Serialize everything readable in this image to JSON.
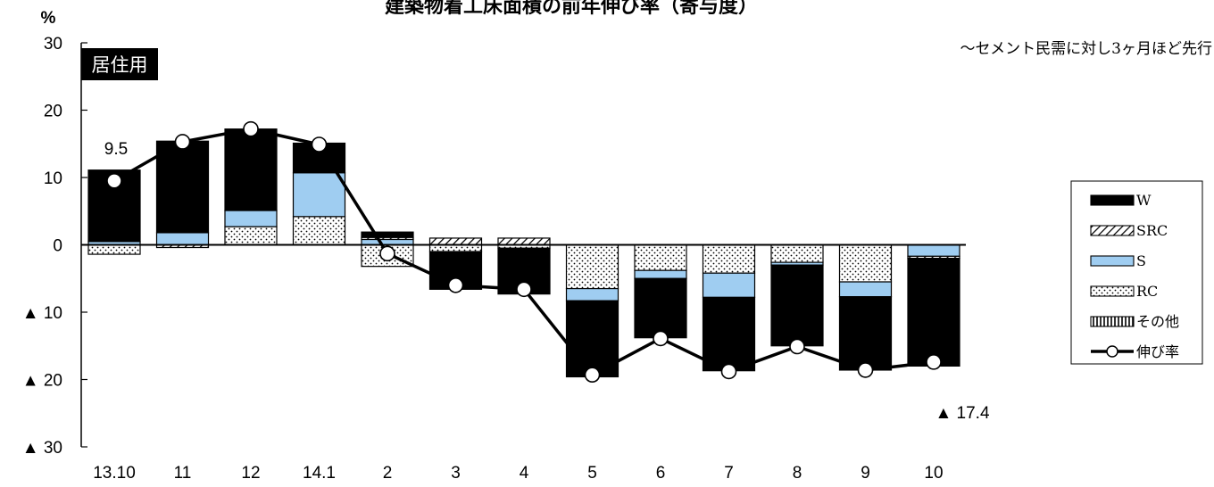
{
  "chart_data": {
    "type": "bar",
    "subtype": "stacked-contribution-with-line",
    "title": "建築物着工床面積の前年伸び率（寄与度）",
    "subtitle": "～セメント民需に対し3ヶ月ほど先行",
    "panel_label": "居住用",
    "y_unit": "%",
    "ylim": [
      -30,
      30
    ],
    "y_ticks": [
      {
        "value": 30,
        "label": "30"
      },
      {
        "value": 20,
        "label": "20"
      },
      {
        "value": 10,
        "label": "10"
      },
      {
        "value": 0,
        "label": "0"
      },
      {
        "value": -10,
        "label": "▲ 10"
      },
      {
        "value": -20,
        "label": "▲ 20"
      },
      {
        "value": -30,
        "label": "▲ 30"
      }
    ],
    "categories": [
      "13.10",
      "11",
      "12",
      "14.1",
      "2",
      "3",
      "4",
      "5",
      "6",
      "7",
      "8",
      "9",
      "10"
    ],
    "series": [
      {
        "name": "その他",
        "key": "other",
        "pattern": "vstripe",
        "values": [
          0,
          0,
          0,
          0,
          0,
          0,
          0,
          0,
          0,
          0,
          0,
          0,
          0
        ]
      },
      {
        "name": "RC",
        "key": "rc",
        "pattern": "dots",
        "values": [
          -1.4,
          0,
          2.7,
          4.2,
          -3.2,
          -1.0,
          -0.5,
          -6.5,
          -3.8,
          -4.2,
          -2.6,
          -5.5,
          0
        ]
      },
      {
        "name": "S",
        "key": "s",
        "pattern": "solid-blue",
        "values": [
          0.5,
          1.8,
          2.4,
          6.5,
          0.8,
          0,
          0,
          -1.8,
          -1.2,
          -3.6,
          -0.4,
          -2.2,
          -1.7
        ]
      },
      {
        "name": "SRC",
        "key": "src",
        "pattern": "hatch",
        "values": [
          0,
          -0.4,
          0,
          0,
          0.3,
          1.0,
          1.0,
          0,
          0,
          0,
          0,
          0,
          -0.3
        ]
      },
      {
        "name": "W",
        "key": "w",
        "pattern": "solid-black",
        "values": [
          10.6,
          13.6,
          12.1,
          4.4,
          0.8,
          -5.6,
          -6.8,
          -11.3,
          -8.8,
          -10.9,
          -12.0,
          -10.9,
          -16.0
        ]
      }
    ],
    "line": {
      "name": "伸び率",
      "values": [
        9.5,
        15.3,
        17.2,
        14.9,
        -1.3,
        -6.0,
        -6.6,
        -19.3,
        -13.9,
        -18.8,
        -15.1,
        -18.6,
        -17.4
      ]
    },
    "annotations": [
      {
        "category_index": 0,
        "text": "9.5"
      },
      {
        "category_index": 12,
        "text": "▲ 17.4"
      }
    ],
    "legend": {
      "placement": "right",
      "entries": [
        {
          "key": "w",
          "label": "W"
        },
        {
          "key": "src",
          "label": "SRC"
        },
        {
          "key": "s",
          "label": "S"
        },
        {
          "key": "rc",
          "label": "RC"
        },
        {
          "key": "other",
          "label": "その他"
        },
        {
          "key": "line",
          "label": "伸び率"
        }
      ]
    },
    "colors": {
      "w": "#000000",
      "s": "#9fcdf1",
      "rc": "#ffffff",
      "line": "#000000"
    },
    "grid": false
  }
}
